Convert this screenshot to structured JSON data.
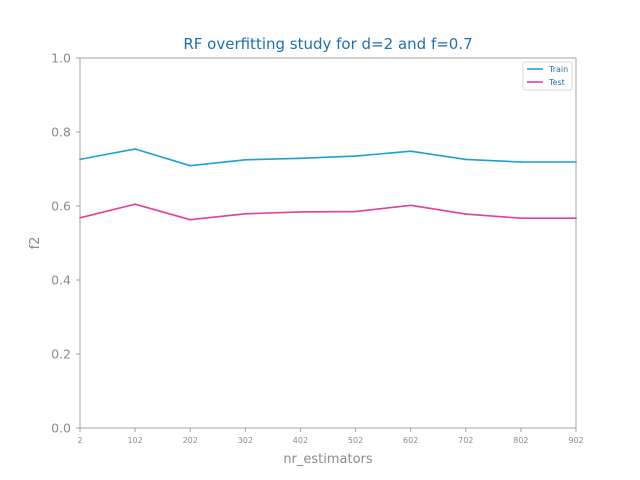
{
  "chart_data": {
    "type": "line",
    "title": "RF overfitting study for d=2 and f=0.7",
    "xlabel": "nr_estimators",
    "ylabel": "f2",
    "x": [
      2,
      102,
      202,
      302,
      402,
      502,
      602,
      702,
      802,
      902
    ],
    "xticks": [
      "2",
      "102",
      "202",
      "302",
      "402",
      "502",
      "602",
      "702",
      "802",
      "902"
    ],
    "yticks": [
      "0.0",
      "0.2",
      "0.4",
      "0.6",
      "0.8",
      "1.0"
    ],
    "xlim": [
      2,
      902
    ],
    "ylim": [
      0.0,
      1.0
    ],
    "grid": false,
    "legend_position": "top-right",
    "series": [
      {
        "name": "Train",
        "color": "#1f9fd6",
        "values": [
          0.726,
          0.754,
          0.709,
          0.725,
          0.729,
          0.735,
          0.748,
          0.726,
          0.719,
          0.719
        ]
      },
      {
        "name": "Test",
        "color": "#e0409c",
        "values": [
          0.568,
          0.605,
          0.563,
          0.579,
          0.584,
          0.585,
          0.602,
          0.578,
          0.567,
          0.567
        ]
      }
    ]
  }
}
